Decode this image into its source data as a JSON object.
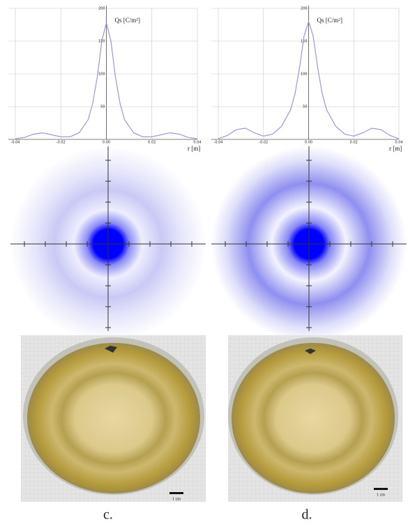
{
  "chart_data": [
    {
      "type": "line",
      "y_label": "Qs [C/m²]",
      "x_label": "r [m]",
      "x": [
        -0.04,
        -0.036,
        -0.032,
        -0.028,
        -0.024,
        -0.02,
        -0.016,
        -0.012,
        -0.008,
        -0.006,
        -0.004,
        -0.002,
        0,
        0.002,
        0.004,
        0.006,
        0.008,
        0.012,
        0.016,
        0.02,
        0.024,
        0.028,
        0.032,
        0.036,
        0.04
      ],
      "series": [
        {
          "color": "#9a97d6",
          "values": [
            1,
            3,
            8,
            10,
            7,
            4,
            4,
            10,
            30,
            55,
            95,
            150,
            178,
            150,
            95,
            55,
            30,
            10,
            4,
            4,
            7,
            10,
            8,
            3,
            1
          ]
        }
      ],
      "xlim": [
        -0.04,
        0.04
      ],
      "xticks": [
        -0.04,
        -0.02,
        {
          "value": 0,
          "label": "0.00"
        },
        0.02,
        0.04
      ],
      "ylim": [
        0,
        200
      ],
      "yticks": [
        50,
        100,
        150,
        200
      ],
      "grid": true
    },
    {
      "type": "line",
      "y_label": "Qs [C/m²]",
      "x_label": "r [m]",
      "x": [
        -0.04,
        -0.036,
        -0.032,
        -0.028,
        -0.024,
        -0.02,
        -0.016,
        -0.012,
        -0.008,
        -0.006,
        -0.004,
        -0.002,
        0,
        0.002,
        0.004,
        0.006,
        0.008,
        0.012,
        0.016,
        0.02,
        0.024,
        0.028,
        0.032,
        0.036,
        0.04
      ],
      "series": [
        {
          "color": "#9a97d6",
          "values": [
            1,
            6,
            15,
            17,
            10,
            5,
            8,
            20,
            45,
            70,
            110,
            158,
            180,
            158,
            110,
            70,
            45,
            20,
            8,
            5,
            10,
            17,
            15,
            6,
            1
          ]
        }
      ],
      "xlim": [
        -0.04,
        0.04
      ],
      "xticks": [
        -0.04,
        -0.02,
        {
          "value": 0,
          "label": "0.00"
        },
        0.02,
        0.04
      ],
      "ylim": [
        0,
        200
      ],
      "yticks": [
        50,
        100,
        150,
        200
      ],
      "grid": true
    }
  ],
  "photos": {
    "scale_labels": [
      "1 cm",
      "1 cm"
    ],
    "panel_labels": [
      "c.",
      "d."
    ]
  }
}
